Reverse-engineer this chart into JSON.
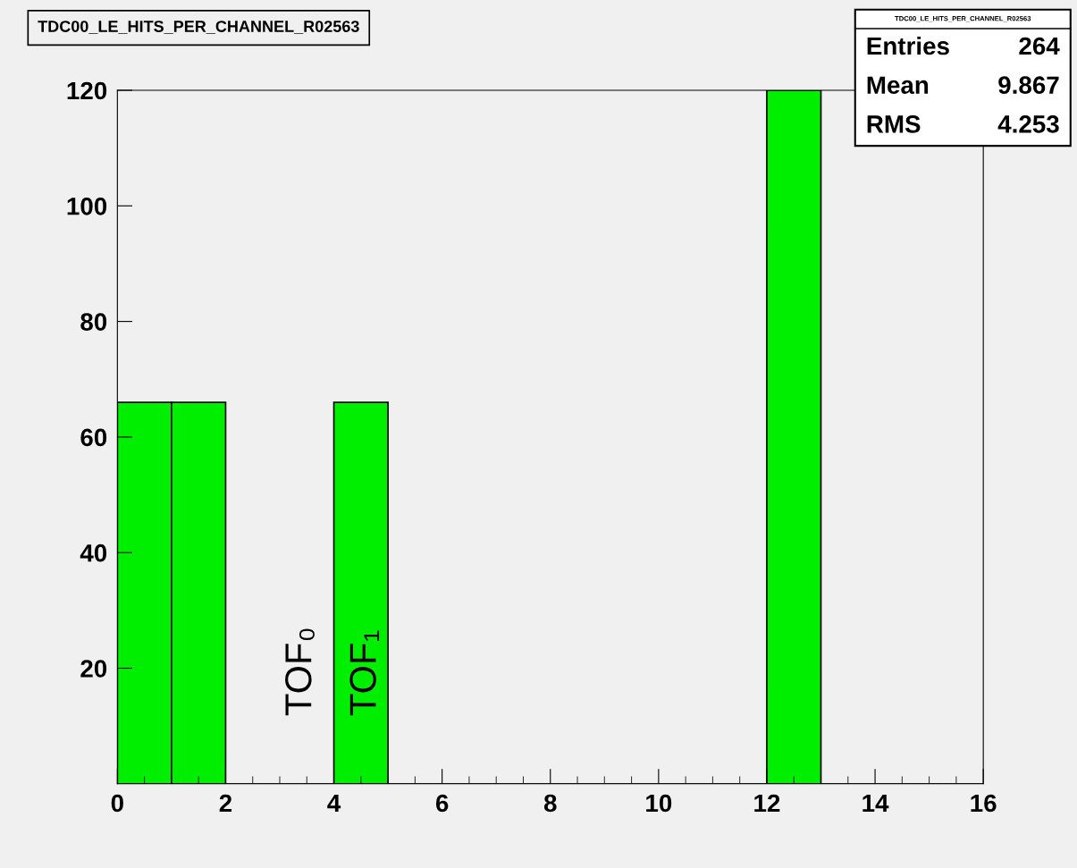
{
  "chart_data": {
    "type": "histogram",
    "title": "TDC00_LE_HITS_PER_CHANNEL_R02563",
    "bins": [
      0,
      1,
      2,
      3,
      4,
      5,
      6,
      7,
      8,
      9,
      10,
      11,
      12,
      13,
      14,
      15,
      16
    ],
    "values": [
      66,
      66,
      0,
      0,
      66,
      0,
      0,
      0,
      0,
      0,
      0,
      0,
      120,
      0,
      0,
      0
    ],
    "color": "#00ee00",
    "xlim": [
      0,
      16
    ],
    "xticks": [
      0,
      2,
      4,
      6,
      8,
      10,
      12,
      14,
      16
    ],
    "ylim": [
      0,
      120
    ],
    "yticks": [
      20,
      40,
      60,
      80,
      100,
      120
    ],
    "grid": false,
    "annotations": [
      "TDC00_LE_HITS_PER_CHANNEL_R02563",
      "Entries",
      "264",
      "Mean",
      "9.867",
      "RMS",
      "4.253",
      "TOF₀",
      "TOF₁"
    ]
  }
}
